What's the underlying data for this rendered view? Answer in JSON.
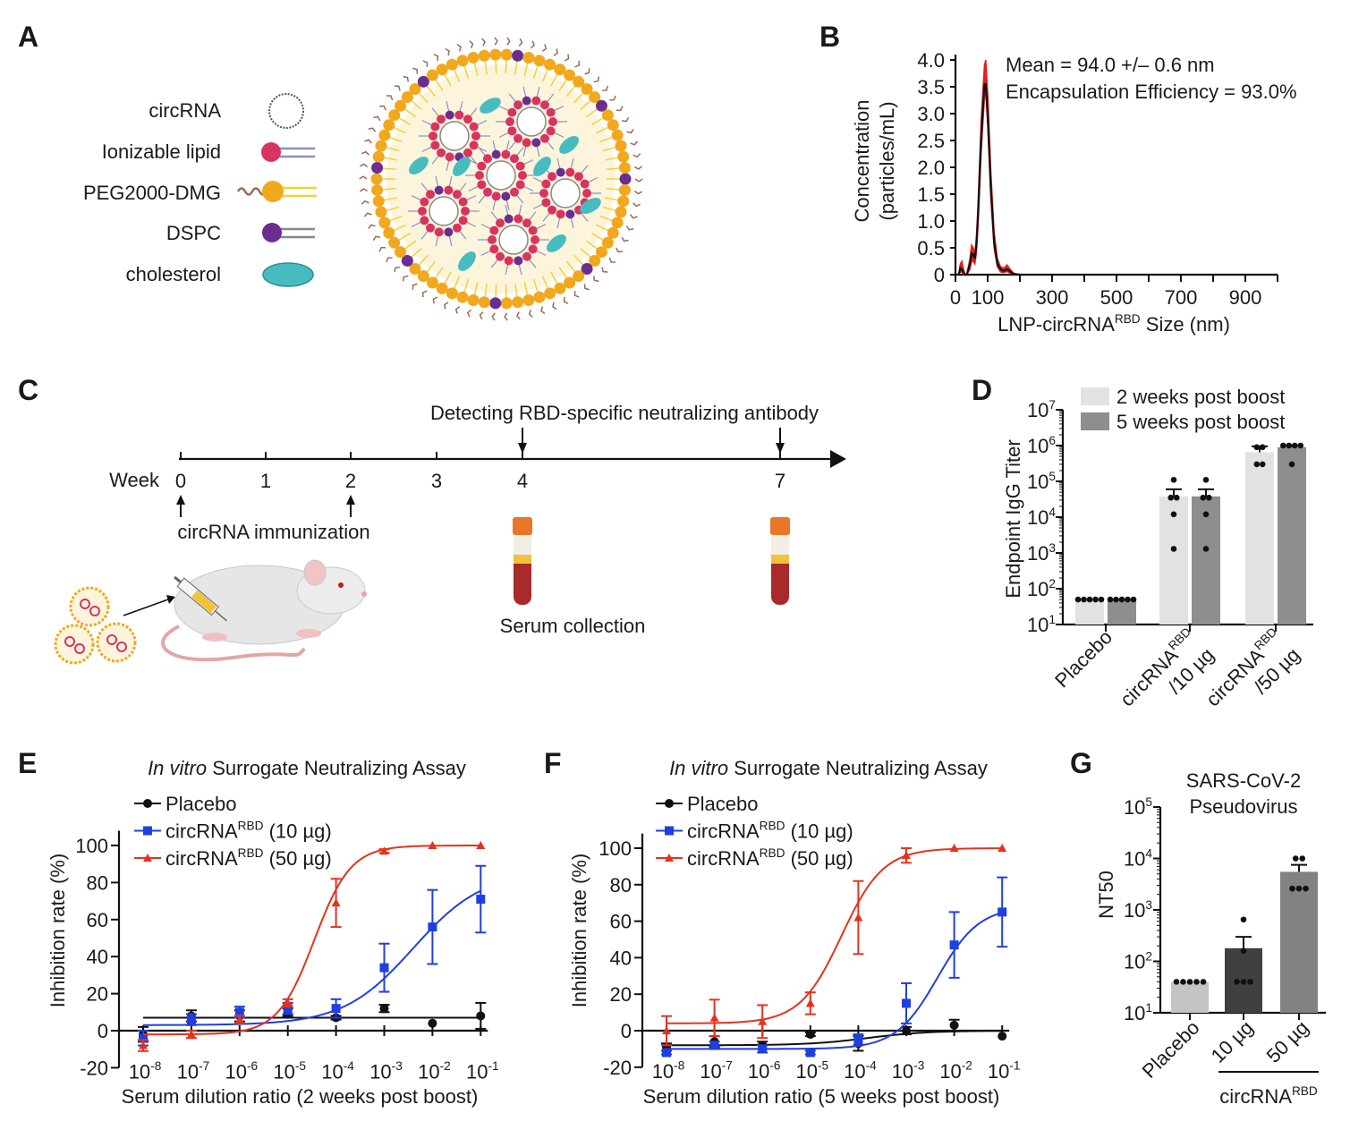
{
  "panel_labels": {
    "a": "A",
    "b": "B",
    "c": "C",
    "d": "D",
    "e": "E",
    "f": "F",
    "g": "G"
  },
  "panel_a": {
    "legend": [
      {
        "label": "circRNA",
        "icon": "circrna-icon"
      },
      {
        "label": "Ionizable lipid",
        "icon": "ionizable-lipid-icon"
      },
      {
        "label": "PEG2000-DMG",
        "icon": "peg-lipid-icon"
      },
      {
        "label": "DSPC",
        "icon": "dspc-icon"
      },
      {
        "label": "cholesterol",
        "icon": "cholesterol-icon"
      }
    ],
    "colors": {
      "ionizable_lipid": "#d8345f",
      "peg": "#f2a81d",
      "dspc": "#6b2d8f",
      "cholesterol": "#46bcc0",
      "peg_chain": "#9a6a5a"
    }
  },
  "panel_c": {
    "detect_label": "Detecting RBD-specific neutralizing antibody",
    "week_label": "Week",
    "weeks": [
      "0",
      "1",
      "2",
      "3",
      "4",
      "7"
    ],
    "immunization_label": "circRNA immunization",
    "serum_label": "Serum collection"
  },
  "chart_data": [
    {
      "panel": "B",
      "type": "line",
      "annotations": [
        "Mean = 94.0 +/– 0.6 nm",
        "Encapsulation Efficiency = 93.0%"
      ],
      "xlabel": {
        "base": "LNP-circRNA",
        "sup": "RBD",
        "rest": " Size (nm)"
      },
      "ylabel": [
        "Concentration",
        "(particles/mL)"
      ],
      "xlim": [
        0,
        1000
      ],
      "ylim": [
        0,
        4.0
      ],
      "x_ticks": [
        0,
        100,
        200,
        300,
        400,
        500,
        600,
        700,
        800,
        900,
        1000
      ],
      "x_tick_labels": {
        "0": "0",
        "100": "100",
        "300": "300",
        "500": "500",
        "700": "700",
        "900": "900"
      },
      "y_ticks": [
        0,
        0.5,
        1.0,
        1.5,
        2.0,
        2.5,
        3.0,
        3.5,
        4.0
      ],
      "y_tick_labels": [
        "0",
        "0.5",
        "1.0",
        "1.5",
        "2.0",
        "2.5",
        "3.0",
        "3.5",
        "4.0"
      ],
      "grid": false,
      "series": [
        {
          "role": "error-band",
          "color": "#e0201b",
          "x": [
            10,
            15,
            20,
            25,
            30,
            35,
            45,
            50,
            55,
            60,
            65,
            70,
            80,
            90,
            94,
            100,
            110,
            120,
            130,
            140,
            150,
            160,
            170,
            180,
            200
          ],
          "upper": [
            0,
            0.2,
            0.25,
            0.1,
            0,
            0,
            0.3,
            0.55,
            0.5,
            0.4,
            0.7,
            1.3,
            2.9,
            3.9,
            4.0,
            3.4,
            1.9,
            0.8,
            0.3,
            0.15,
            0.12,
            0.18,
            0.1,
            0.03,
            0
          ],
          "lower": [
            0,
            0.05,
            0.05,
            0,
            0,
            0,
            0.1,
            0.25,
            0.25,
            0.2,
            0.4,
            0.9,
            2.3,
            3.3,
            3.4,
            2.8,
            1.4,
            0.5,
            0.15,
            0.05,
            0.04,
            0.06,
            0.03,
            0,
            0
          ]
        },
        {
          "role": "mean",
          "color": "#111111",
          "x": [
            10,
            15,
            20,
            25,
            30,
            35,
            45,
            50,
            55,
            60,
            65,
            70,
            80,
            90,
            94,
            100,
            110,
            120,
            130,
            140,
            150,
            160,
            170,
            180,
            200
          ],
          "y": [
            0,
            0.12,
            0.1,
            0.04,
            0,
            0,
            0.2,
            0.4,
            0.38,
            0.3,
            0.55,
            1.1,
            2.6,
            3.55,
            3.55,
            3.0,
            1.6,
            0.6,
            0.2,
            0.1,
            0.07,
            0.1,
            0.06,
            0.01,
            0
          ]
        }
      ]
    },
    {
      "panel": "D",
      "type": "bar",
      "y_scale": "log",
      "ylabel": "Endpoint IgG Titer",
      "ylim": [
        10,
        10000000
      ],
      "y_tick_exponents": [
        {
          "base": "10",
          "exp": "1"
        },
        {
          "base": "10",
          "exp": "2"
        },
        {
          "base": "10",
          "exp": "3"
        },
        {
          "base": "10",
          "exp": "4"
        },
        {
          "base": "10",
          "exp": "5"
        },
        {
          "base": "10",
          "exp": "6"
        },
        {
          "base": "10",
          "exp": "7"
        }
      ],
      "categories": [
        {
          "line1": "Placebo"
        },
        {
          "line1_base": "circRNA",
          "line1_sup": "RBD",
          "line2": "/10 µg"
        },
        {
          "line1_base": "circRNA",
          "line1_sup": "RBD",
          "line2": "/50 µg"
        }
      ],
      "legend_position": "top-right",
      "series": [
        {
          "name": "2 weeks post boost",
          "color": "#e2e2e2",
          "values": [
            50,
            38000,
            650000
          ],
          "sem_upper": [
            50,
            60000,
            950000
          ],
          "points": [
            [
              50,
              50,
              50,
              50,
              50
            ],
            [
              110000,
              35000,
              35000,
              12000,
              1300
            ],
            [
              900000,
              900000,
              300000,
              300000
            ]
          ]
        },
        {
          "name": "5 weeks post boost",
          "color": "#8e8e8e",
          "values": [
            50,
            38000,
            900000
          ],
          "sem_upper": [
            50,
            60000,
            1000000
          ],
          "points": [
            [
              50,
              50,
              50,
              50,
              50
            ],
            [
              110000,
              35000,
              35000,
              12000,
              1300
            ],
            [
              1000000,
              1000000,
              1000000,
              1000000,
              300000
            ]
          ]
        }
      ]
    },
    {
      "panel": "E",
      "type": "line",
      "x_scale": "log",
      "title": {
        "italic": "In vitro",
        "rest": " Surrogate Neutralizing Assay"
      },
      "xlabel": "Serum dilution ratio (2 weeks post boost)",
      "ylabel": "Inhibition rate (%)",
      "xlim": [
        1e-08,
        0.1
      ],
      "ylim": [
        -20,
        100
      ],
      "x_ticks": [
        1e-08,
        1e-07,
        1e-06,
        1e-05,
        0.0001,
        0.001,
        0.01,
        0.1
      ],
      "x_tick_labels": [
        {
          "base": "10",
          "exp": "-8"
        },
        {
          "base": "10",
          "exp": "-7"
        },
        {
          "base": "10",
          "exp": "-6"
        },
        {
          "base": "10",
          "exp": "-5"
        },
        {
          "base": "10",
          "exp": "-4"
        },
        {
          "base": "10",
          "exp": "-3"
        },
        {
          "base": "10",
          "exp": "-2"
        },
        {
          "base": "10",
          "exp": "-1"
        }
      ],
      "y_ticks": [
        100,
        80,
        60,
        40,
        20,
        0,
        -20
      ],
      "y_tick_labels": [
        "100",
        "80",
        "60",
        "40",
        "20",
        "0",
        "-20"
      ],
      "legend_position": "top-left",
      "series": [
        {
          "name": {
            "base": "Placebo"
          },
          "color": "#111111",
          "marker": "circle",
          "y": [
            -2,
            8,
            8,
            10,
            7,
            12,
            4,
            8
          ],
          "err": [
            4,
            3,
            3,
            2,
            1,
            2,
            0,
            7
          ],
          "fit": {
            "bottom": 7,
            "top": 7,
            "log_ec50": -4,
            "hill": 1
          }
        },
        {
          "name": {
            "base": "circRNA",
            "sup": "RBD",
            "rest": " (10 µg)"
          },
          "color": "#1f3fe0",
          "marker": "square",
          "y": [
            -4,
            6,
            10,
            12,
            12,
            34,
            56,
            71
          ],
          "err": [
            4,
            3,
            3,
            3,
            5,
            13,
            20,
            18
          ],
          "fit": {
            "bottom": 3,
            "top": 86,
            "log_ec50": -2.4,
            "hill": 0.6
          }
        },
        {
          "name": {
            "base": "circRNA",
            "sup": "RBD",
            "rest": " (50 µg)"
          },
          "color": "#e5321e",
          "marker": "triangle",
          "y": [
            -8,
            -2,
            6,
            15,
            69,
            97,
            100,
            100
          ],
          "err": [
            3,
            2,
            2,
            2,
            13,
            1,
            0,
            0
          ],
          "fit": {
            "bottom": -2,
            "top": 100,
            "log_ec50": -4.45,
            "hill": 1.15
          }
        }
      ]
    },
    {
      "panel": "F",
      "type": "line",
      "x_scale": "log",
      "title": {
        "italic": "In vitro",
        "rest": " Surrogate Neutralizing Assay"
      },
      "xlabel": "Serum dilution ratio (5 weeks post boost)",
      "ylabel": "Inhibition rate (%)",
      "xlim": [
        1e-08,
        0.1
      ],
      "ylim": [
        -20,
        100
      ],
      "x_ticks": [
        1e-08,
        1e-07,
        1e-06,
        1e-05,
        0.0001,
        0.001,
        0.01,
        0.1
      ],
      "x_tick_labels": [
        {
          "base": "10",
          "exp": "-8"
        },
        {
          "base": "10",
          "exp": "-7"
        },
        {
          "base": "10",
          "exp": "-6"
        },
        {
          "base": "10",
          "exp": "-5"
        },
        {
          "base": "10",
          "exp": "-4"
        },
        {
          "base": "10",
          "exp": "-3"
        },
        {
          "base": "10",
          "exp": "-2"
        },
        {
          "base": "10",
          "exp": "-1"
        }
      ],
      "y_ticks": [
        100,
        80,
        60,
        40,
        20,
        0,
        -20
      ],
      "y_tick_labels": [
        "100",
        "80",
        "60",
        "40",
        "20",
        "0",
        "-20"
      ],
      "legend_position": "top-left",
      "series": [
        {
          "name": {
            "base": "Placebo"
          },
          "color": "#111111",
          "marker": "circle",
          "y": [
            -9,
            -6,
            -8,
            -2,
            -7,
            0,
            3,
            -3
          ],
          "err": [
            2,
            3,
            2,
            1,
            4,
            2,
            3,
            0
          ],
          "fit": {
            "bottom": -8,
            "top": 0,
            "log_ec50": -3.8,
            "hill": 0.7
          }
        },
        {
          "name": {
            "base": "circRNA",
            "sup": "RBD",
            "rest": " (10 µg)"
          },
          "color": "#1f3fe0",
          "marker": "square",
          "y": [
            -12,
            -8,
            -10,
            -12,
            -5,
            15,
            47,
            65
          ],
          "err": [
            1,
            2,
            2,
            1,
            3,
            11,
            18,
            19
          ],
          "fit": {
            "bottom": -10,
            "top": 68,
            "log_ec50": -2.35,
            "hill": 1
          }
        },
        {
          "name": {
            "base": "circRNA",
            "sup": "RBD",
            "rest": " (50 µg)"
          },
          "color": "#e5321e",
          "marker": "triangle",
          "y": [
            0,
            7,
            5,
            15,
            62,
            96,
            100,
            100
          ],
          "err": [
            8,
            10,
            9,
            6,
            20,
            4,
            0,
            0
          ],
          "fit": {
            "bottom": 4,
            "top": 100,
            "log_ec50": -4.35,
            "hill": 1
          }
        }
      ]
    },
    {
      "panel": "G",
      "type": "bar",
      "y_scale": "log",
      "title": [
        "SARS-CoV-2",
        "Pseudovirus"
      ],
      "ylabel": "NT50",
      "ylim": [
        10,
        100000
      ],
      "y_tick_exponents": [
        {
          "base": "10",
          "exp": "1"
        },
        {
          "base": "10",
          "exp": "2"
        },
        {
          "base": "10",
          "exp": "3"
        },
        {
          "base": "10",
          "exp": "4"
        },
        {
          "base": "10",
          "exp": "5"
        }
      ],
      "categories": [
        "Placebo",
        "10 µg",
        "50 µg"
      ],
      "group_label": {
        "base": "circRNA",
        "sup": "RBD"
      },
      "colors": [
        "#c4c4c4",
        "#404040",
        "#828282"
      ],
      "values": [
        40,
        180,
        5500
      ],
      "sem_upper": [
        40,
        300,
        7500
      ],
      "points": [
        [
          40,
          40,
          40,
          40,
          40
        ],
        [
          650,
          160,
          40,
          40,
          40
        ],
        [
          10000,
          10000,
          2600,
          2600,
          2600
        ]
      ]
    }
  ]
}
